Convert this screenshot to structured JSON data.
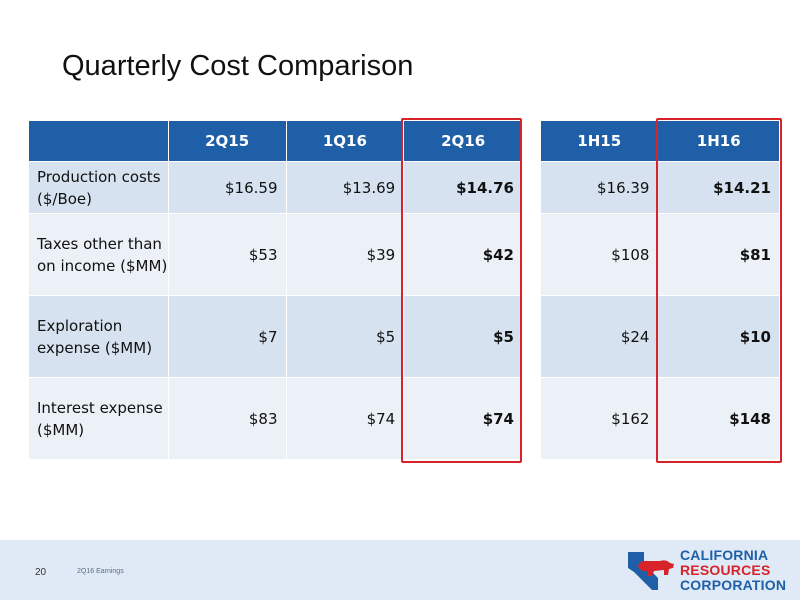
{
  "slide": {
    "title": "Quarterly Cost Comparison",
    "page_number": "20",
    "footer_note": "2Q16 Earnings"
  },
  "table": {
    "headers": [
      "",
      "2Q15",
      "1Q16",
      "2Q16"
    ],
    "rows": [
      {
        "label": "Production costs ($/Boe)",
        "values": [
          "$16.59",
          "$13.69",
          "$14.76"
        ]
      },
      {
        "label": "Taxes other than on income ($MM)",
        "values": [
          "$53",
          "$39",
          "$42"
        ]
      },
      {
        "label": "Exploration expense ($MM)",
        "values": [
          "$7",
          "$5",
          "$5"
        ]
      },
      {
        "label": "Interest expense ($MM)",
        "values": [
          "$83",
          "$74",
          "$74"
        ]
      }
    ],
    "highlighted_column": "2Q16"
  },
  "half_year_table": {
    "headers": [
      "1H15",
      "1H16"
    ],
    "rows": [
      {
        "values": [
          "$16.39",
          "$14.21"
        ]
      },
      {
        "values": [
          "$108",
          "$81"
        ]
      },
      {
        "values": [
          "$24",
          "$10"
        ]
      },
      {
        "values": [
          "$162",
          "$148"
        ]
      }
    ],
    "highlighted_column": "1H16"
  },
  "logo": {
    "line1": "CALIFORNIA",
    "line2": "RESOURCES",
    "line3": "CORPORATION"
  },
  "colors": {
    "header_blue": "#1f5fa8",
    "row_light": "#ebf1f7",
    "row_dark": "#d6e2ef",
    "highlight_red": "#d8232a"
  }
}
